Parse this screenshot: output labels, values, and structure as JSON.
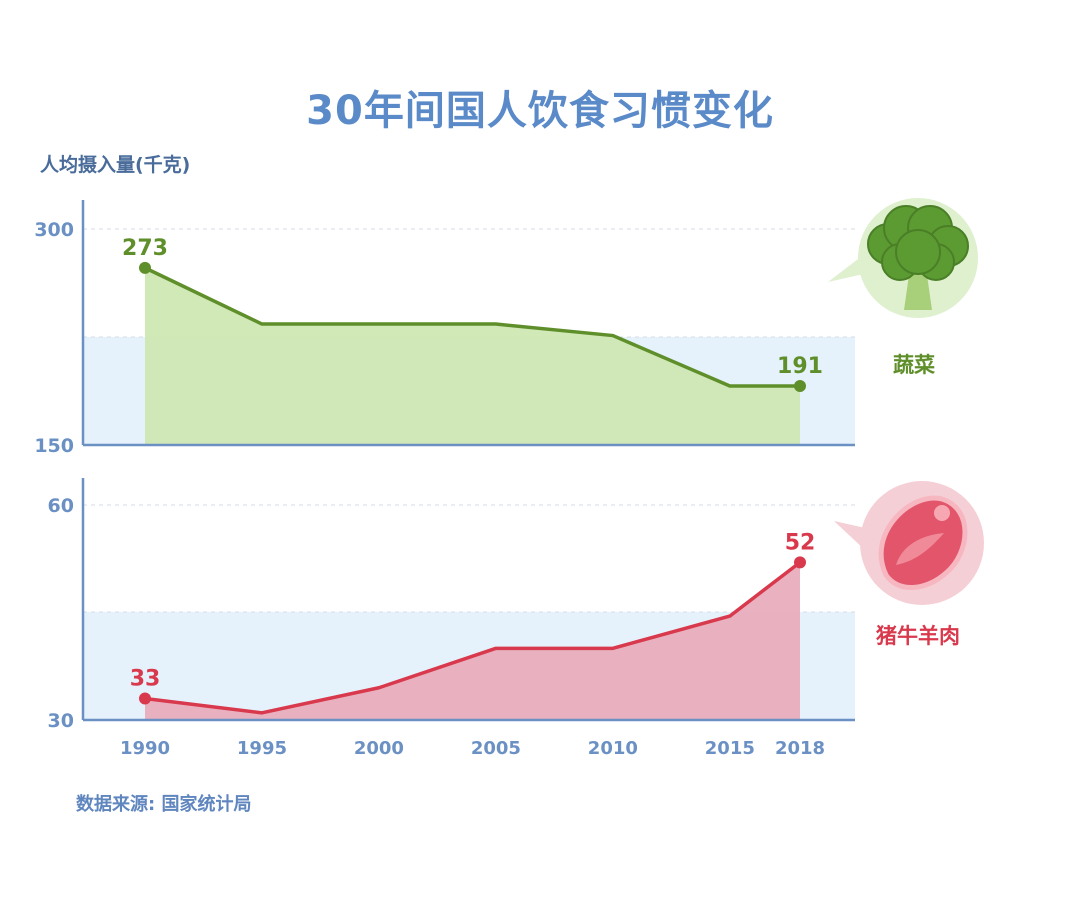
{
  "title": "30年间国人饮食习惯变化",
  "unit_label": "人均摄入量(千克)",
  "source": "数据来源: 国家统计局",
  "colors": {
    "title": "#5b8ac9",
    "axis": "#6a90c4",
    "band": "#e6f2fb",
    "vegetable_line": "#5f8f2a",
    "vegetable_fill": "#cfe7b3",
    "meat_line": "#d9394c",
    "meat_fill": "#e9adbd"
  },
  "chart_data": [
    {
      "type": "area",
      "name": "蔬菜",
      "icon": "broccoli-icon",
      "x": [
        1990,
        1995,
        2000,
        2005,
        2010,
        2015,
        2018
      ],
      "y": [
        273,
        234,
        234,
        234,
        226,
        191,
        191
      ],
      "ylim": [
        150,
        300
      ],
      "yticks": [
        "300",
        "150"
      ],
      "labels": [
        {
          "index": 0,
          "text": "273"
        },
        {
          "index": 6,
          "text": "191"
        }
      ]
    },
    {
      "type": "area",
      "name": "猪牛羊肉",
      "icon": "meat-steak-icon",
      "x": [
        1990,
        1995,
        2000,
        2005,
        2010,
        2015,
        2018
      ],
      "y": [
        33,
        31,
        34.5,
        40,
        40,
        44.5,
        52
      ],
      "ylim": [
        30,
        60
      ],
      "yticks": [
        "60",
        "30"
      ],
      "labels": [
        {
          "index": 0,
          "text": "33"
        },
        {
          "index": 6,
          "text": "52"
        }
      ]
    }
  ],
  "x_ticks": [
    "1990",
    "1995",
    "2000",
    "2005",
    "2010",
    "2015",
    "2018"
  ]
}
